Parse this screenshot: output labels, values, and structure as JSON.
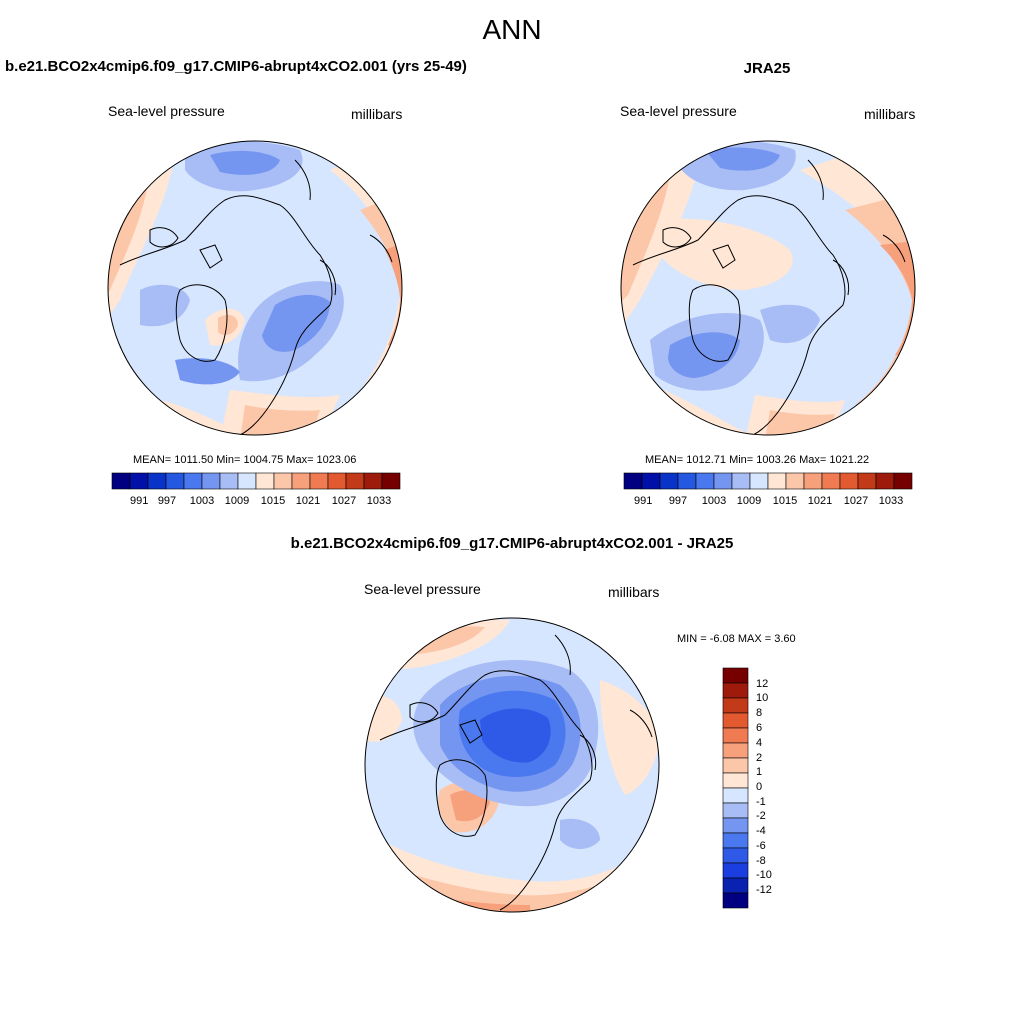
{
  "figure": {
    "title": "ANN"
  },
  "colors": {
    "hcbar": [
      "#000080",
      "#0010a8",
      "#0a34c8",
      "#2458e0",
      "#4a78ee",
      "#7596f0",
      "#a8bdf5",
      "#d7e6ff",
      "#ffe6d5",
      "#fcc6a8",
      "#f7a07c",
      "#f07b52",
      "#e45a30",
      "#c33a18",
      "#9e1a0a",
      "#760000"
    ],
    "vcbar": [
      "#000080",
      "#0a22b0",
      "#1a3ee0",
      "#2f5ae8",
      "#4a78ee",
      "#7596f0",
      "#a8bdf5",
      "#d7e6ff",
      "#ffe6d5",
      "#fcc6a8",
      "#f7a07c",
      "#f07b52",
      "#e45a30",
      "#c33a18",
      "#9e1a0a",
      "#760000"
    ]
  },
  "panels": {
    "model": {
      "title": "b.e21.BCO2x4cmip6.f09_g17.CMIP6-abrupt4xCO2.001 (yrs 25-49)",
      "variable": "Sea-level pressure",
      "units": "millibars",
      "stats": "MEAN= 1011.50  Min= 1004.75  Max= 1023.06"
    },
    "obs": {
      "title": "JRA25",
      "variable": "Sea-level pressure",
      "units": "millibars",
      "stats": "MEAN= 1012.71  Min= 1003.26  Max= 1021.22"
    },
    "diff": {
      "title": "b.e21.BCO2x4cmip6.f09_g17.CMIP6-abrupt4xCO2.001 - JRA25",
      "variable": "Sea-level pressure",
      "units": "millibars",
      "stats": "MIN =  -6.08 MAX =   3.60"
    }
  },
  "colorbar_top_labels": [
    "991",
    "997",
    "1003",
    "1009",
    "1015",
    "1021",
    "1027",
    "1033"
  ],
  "colorbar_diff_labels": [
    "12",
    "10",
    "8",
    "6",
    "4",
    "2",
    "1",
    "0",
    "-1",
    "-2",
    "-4",
    "-6",
    "-8",
    "-10",
    "-12"
  ]
}
